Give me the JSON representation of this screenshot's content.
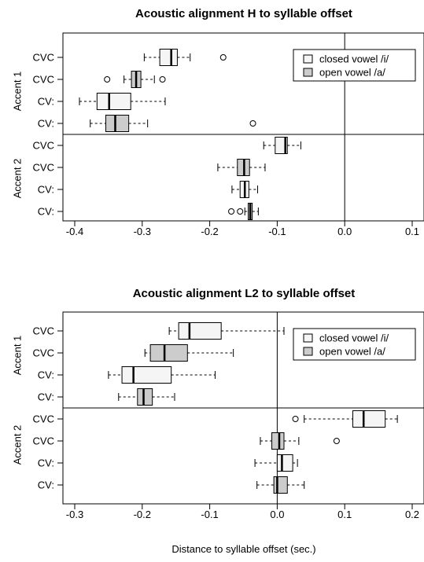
{
  "xlabel": "Distance to syllable offset (sec.)",
  "legend": {
    "placement": "top-right",
    "items": [
      {
        "label": "closed vowel /i/",
        "color": "#f5f5f5"
      },
      {
        "label": "open vowel /a/",
        "color": "#cccccc"
      }
    ]
  },
  "chart_data": [
    {
      "type": "boxplot",
      "orientation": "horizontal",
      "title": "Acoustic alignment H to syllable offset",
      "xlabel": "Distance to syllable offset (sec.)",
      "xlim": [
        -0.42,
        0.11
      ],
      "xticks": [
        -0.4,
        -0.3,
        -0.2,
        -0.1,
        0.0,
        0.1
      ],
      "xtick_labels": [
        "-0.4",
        "-0.3",
        "-0.2",
        "-0.1",
        "0.0",
        "0.1"
      ],
      "reference_line_x": 0.0,
      "groups": [
        {
          "label": "Accent 1",
          "rows": [
            {
              "label": "CVC",
              "vowel": "closed vowel /i/",
              "whisker_low": -0.297,
              "q1": -0.274,
              "median": -0.257,
              "q3": -0.248,
              "whisker_high": -0.229,
              "outliers": [
                -0.18
              ]
            },
            {
              "label": "CVC",
              "vowel": "open vowel /a/",
              "whisker_low": -0.327,
              "q1": -0.316,
              "median": -0.309,
              "q3": -0.302,
              "whisker_high": -0.282,
              "outliers": [
                -0.352,
                -0.27
              ]
            },
            {
              "label": "CV:",
              "vowel": "closed vowel /i/",
              "whisker_low": -0.393,
              "q1": -0.367,
              "median": -0.349,
              "q3": -0.317,
              "whisker_high": -0.266,
              "outliers": []
            },
            {
              "label": "CV:",
              "vowel": "open vowel /a/",
              "whisker_low": -0.377,
              "q1": -0.354,
              "median": -0.34,
              "q3": -0.32,
              "whisker_high": -0.292,
              "outliers": [
                -0.136
              ]
            }
          ]
        },
        {
          "label": "Accent 2",
          "rows": [
            {
              "label": "CVC",
              "vowel": "closed vowel /i/",
              "whisker_low": -0.12,
              "q1": -0.103,
              "median": -0.088,
              "q3": -0.085,
              "whisker_high": -0.065,
              "outliers": []
            },
            {
              "label": "CVC",
              "vowel": "open vowel /a/",
              "whisker_low": -0.188,
              "q1": -0.159,
              "median": -0.149,
              "q3": -0.141,
              "whisker_high": -0.118,
              "outliers": []
            },
            {
              "label": "CV:",
              "vowel": "closed vowel /i/",
              "whisker_low": -0.167,
              "q1": -0.155,
              "median": -0.148,
              "q3": -0.142,
              "whisker_high": -0.129,
              "outliers": []
            },
            {
              "label": "CV:",
              "vowel": "open vowel /a/",
              "whisker_low": -0.148,
              "q1": -0.143,
              "median": -0.14,
              "q3": -0.137,
              "whisker_high": -0.128,
              "outliers": [
                -0.168,
                -0.155
              ]
            }
          ]
        }
      ]
    },
    {
      "type": "boxplot",
      "orientation": "horizontal",
      "title": "Acoustic alignment L2 to syllable offset",
      "xlabel": "Distance to syllable offset (sec.)",
      "xlim": [
        -0.32,
        0.215
      ],
      "xticks": [
        -0.3,
        -0.2,
        -0.1,
        0.0,
        0.1,
        0.2
      ],
      "xtick_labels": [
        "-0.3",
        "-0.2",
        "-0.1",
        "0.0",
        "0.1",
        "0.2"
      ],
      "reference_line_x": 0.0,
      "groups": [
        {
          "label": "Accent 1",
          "rows": [
            {
              "label": "CVC",
              "vowel": "closed vowel /i/",
              "whisker_low": -0.16,
              "q1": -0.146,
              "median": -0.13,
              "q3": -0.083,
              "whisker_high": 0.01,
              "outliers": []
            },
            {
              "label": "CVC",
              "vowel": "open vowel /a/",
              "whisker_low": -0.196,
              "q1": -0.188,
              "median": -0.167,
              "q3": -0.133,
              "whisker_high": -0.065,
              "outliers": []
            },
            {
              "label": "CV:",
              "vowel": "closed vowel /i/",
              "whisker_low": -0.25,
              "q1": -0.23,
              "median": -0.213,
              "q3": -0.157,
              "whisker_high": -0.092,
              "outliers": []
            },
            {
              "label": "CV:",
              "vowel": "open vowel /a/",
              "whisker_low": -0.235,
              "q1": -0.207,
              "median": -0.198,
              "q3": -0.185,
              "whisker_high": -0.152,
              "outliers": []
            }
          ]
        },
        {
          "label": "Accent 2",
          "rows": [
            {
              "label": "CVC",
              "vowel": "closed vowel /i/",
              "whisker_low": 0.04,
              "q1": 0.112,
              "median": 0.128,
              "q3": 0.16,
              "whisker_high": 0.178,
              "outliers": [
                0.027
              ]
            },
            {
              "label": "CVC",
              "vowel": "open vowel /a/",
              "whisker_low": -0.025,
              "q1": -0.008,
              "median": 0.003,
              "q3": 0.01,
              "whisker_high": 0.032,
              "outliers": [
                0.088
              ]
            },
            {
              "label": "CV:",
              "vowel": "closed vowel /i/",
              "whisker_low": -0.033,
              "q1": 0.0,
              "median": 0.007,
              "q3": 0.023,
              "whisker_high": 0.03,
              "outliers": []
            },
            {
              "label": "CV:",
              "vowel": "open vowel /a/",
              "whisker_low": -0.03,
              "q1": -0.005,
              "median": 0.0,
              "q3": 0.015,
              "whisker_high": 0.04,
              "outliers": []
            }
          ]
        }
      ]
    }
  ]
}
